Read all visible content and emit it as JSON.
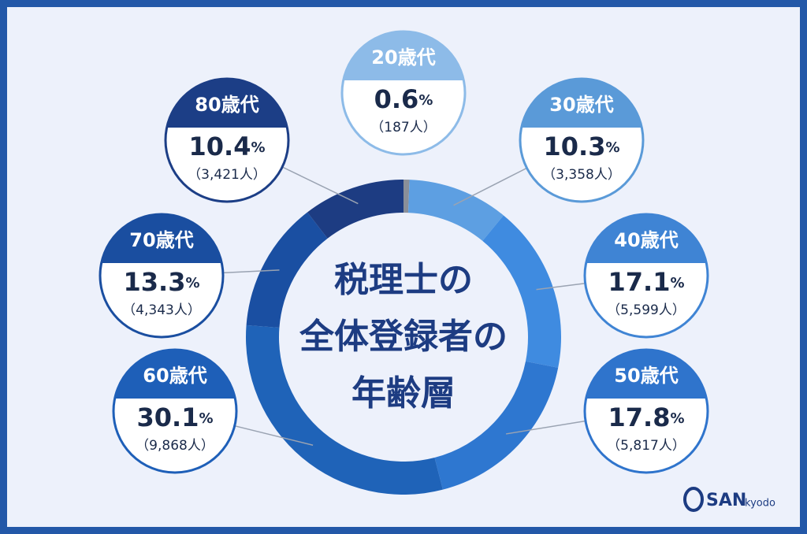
{
  "chart_data": {
    "type": "donut",
    "title_lines": [
      "税理士の",
      "全体登録者の",
      "年齢層"
    ],
    "categories": [
      "20歳代",
      "30歳代",
      "40歳代",
      "50歳代",
      "60歳代",
      "70歳代",
      "80歳代"
    ],
    "values": [
      0.6,
      10.3,
      17.1,
      17.8,
      30.1,
      13.3,
      10.4
    ],
    "value_unit": "%",
    "count_labels": [
      "（187人）",
      "（3,358人）",
      "（5,599人）",
      "（5,817人）",
      "（9,868人）",
      "（4,343人）",
      "（3,421人）"
    ],
    "colors": [
      "#8a8f99",
      "#5d9fe2",
      "#3f8be0",
      "#2e77d0",
      "#1f63b8",
      "#1a4fa2",
      "#1d3c82"
    ],
    "label_colors": [
      "#8dbbe8",
      "#5a9ad8",
      "#3f84d4",
      "#2f74cc",
      "#1e5fb8",
      "#1a4ea0",
      "#1c3e86"
    ]
  },
  "logo": {
    "mark": "SAN",
    "sub": "kyodo"
  }
}
